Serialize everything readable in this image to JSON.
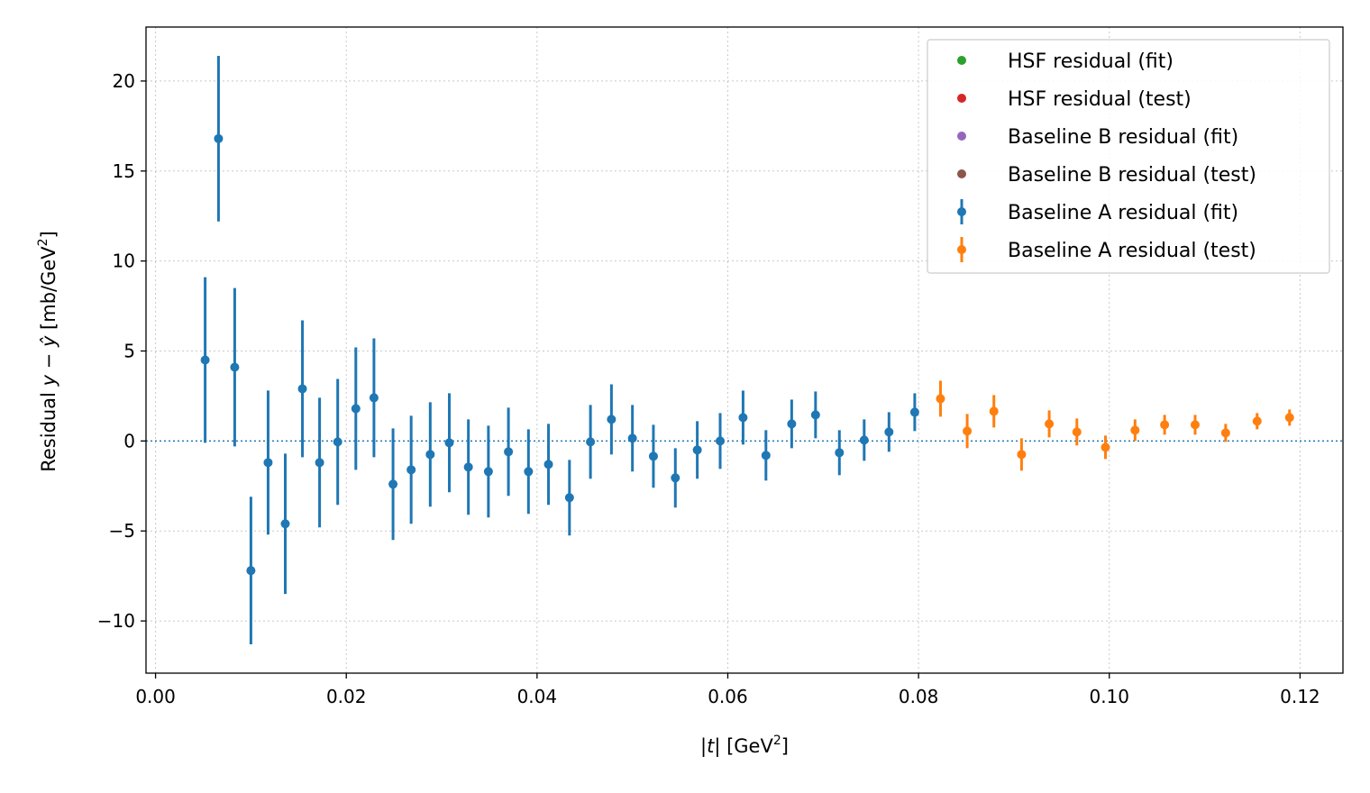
{
  "chart_data": {
    "type": "scatter",
    "title": "",
    "xlabel": {
      "pre": "|",
      "italic": "t",
      "post": "| [GeV",
      "sup": "2",
      "tail": "]"
    },
    "ylabel": {
      "pre": "Residual  ",
      "italic": "y − ŷ",
      "post": "  [mb/GeV",
      "sup": "2",
      "tail": "]"
    },
    "xlim": [
      -0.001,
      0.1245
    ],
    "ylim": [
      -12.9,
      23.0
    ],
    "x_ticks": [
      0.0,
      0.02,
      0.04,
      0.06,
      0.08,
      0.1,
      0.12
    ],
    "x_tick_labels": [
      "0.00",
      "0.02",
      "0.04",
      "0.06",
      "0.08",
      "0.10",
      "0.12"
    ],
    "y_ticks": [
      -10,
      -5,
      0,
      5,
      10,
      15,
      20
    ],
    "y_tick_labels": [
      "−10",
      "−5",
      "0",
      "5",
      "10",
      "15",
      "20"
    ],
    "grid": true,
    "reference_line": {
      "y": 0,
      "style": "dotted",
      "color": "#1f77b4"
    },
    "legend": {
      "placement": "top-right",
      "entries": [
        {
          "label": "HSF residual (fit)",
          "color": "#2ca02c",
          "errorbar": false
        },
        {
          "label": "HSF residual (test)",
          "color": "#d62728",
          "errorbar": false
        },
        {
          "label": "Baseline B residual (fit)",
          "color": "#9467bd",
          "errorbar": false
        },
        {
          "label": "Baseline B residual (test)",
          "color": "#8c564b",
          "errorbar": false
        },
        {
          "label": "Baseline A residual (fit)",
          "color": "#1f77b4",
          "errorbar": true
        },
        {
          "label": "Baseline A residual (test)",
          "color": "#ff7f0e",
          "errorbar": true
        }
      ]
    },
    "series": [
      {
        "name": "Baseline A residual (fit)",
        "color": "#1f77b4",
        "points": [
          {
            "x": 0.0052,
            "y": 4.5,
            "err": 4.6
          },
          {
            "x": 0.0066,
            "y": 16.8,
            "err": 4.6
          },
          {
            "x": 0.0083,
            "y": 4.1,
            "err": 4.4
          },
          {
            "x": 0.01,
            "y": -7.2,
            "err": 4.1
          },
          {
            "x": 0.0118,
            "y": -1.2,
            "err": 4.0
          },
          {
            "x": 0.0136,
            "y": -4.6,
            "err": 3.9
          },
          {
            "x": 0.0154,
            "y": 2.9,
            "err": 3.8
          },
          {
            "x": 0.0172,
            "y": -1.2,
            "err": 3.6
          },
          {
            "x": 0.0191,
            "y": -0.05,
            "err": 3.5
          },
          {
            "x": 0.021,
            "y": 1.8,
            "err": 3.4
          },
          {
            "x": 0.0229,
            "y": 2.4,
            "err": 3.3
          },
          {
            "x": 0.0249,
            "y": -2.4,
            "err": 3.1
          },
          {
            "x": 0.0268,
            "y": -1.6,
            "err": 3.0
          },
          {
            "x": 0.0288,
            "y": -0.75,
            "err": 2.9
          },
          {
            "x": 0.0308,
            "y": -0.1,
            "err": 2.75
          },
          {
            "x": 0.0328,
            "y": -1.45,
            "err": 2.65
          },
          {
            "x": 0.0349,
            "y": -1.7,
            "err": 2.55
          },
          {
            "x": 0.037,
            "y": -0.6,
            "err": 2.45
          },
          {
            "x": 0.0391,
            "y": -1.7,
            "err": 2.35
          },
          {
            "x": 0.0412,
            "y": -1.3,
            "err": 2.25
          },
          {
            "x": 0.0434,
            "y": -3.15,
            "err": 2.1
          },
          {
            "x": 0.0456,
            "y": -0.05,
            "err": 2.05
          },
          {
            "x": 0.0478,
            "y": 1.2,
            "err": 1.95
          },
          {
            "x": 0.05,
            "y": 0.15,
            "err": 1.85
          },
          {
            "x": 0.0522,
            "y": -0.85,
            "err": 1.75
          },
          {
            "x": 0.0545,
            "y": -2.05,
            "err": 1.65
          },
          {
            "x": 0.0568,
            "y": -0.5,
            "err": 1.6
          },
          {
            "x": 0.0592,
            "y": 0.0,
            "err": 1.55
          },
          {
            "x": 0.0616,
            "y": 1.3,
            "err": 1.5
          },
          {
            "x": 0.064,
            "y": -0.8,
            "err": 1.4
          },
          {
            "x": 0.0667,
            "y": 0.95,
            "err": 1.35
          },
          {
            "x": 0.0692,
            "y": 1.45,
            "err": 1.3
          },
          {
            "x": 0.0717,
            "y": -0.65,
            "err": 1.25
          },
          {
            "x": 0.0743,
            "y": 0.05,
            "err": 1.15
          },
          {
            "x": 0.0769,
            "y": 0.5,
            "err": 1.1
          },
          {
            "x": 0.0796,
            "y": 1.6,
            "err": 1.05
          }
        ]
      },
      {
        "name": "Baseline A residual (test)",
        "color": "#ff7f0e",
        "points": [
          {
            "x": 0.0823,
            "y": 2.35,
            "err": 1.0
          },
          {
            "x": 0.0851,
            "y": 0.55,
            "err": 0.95
          },
          {
            "x": 0.0879,
            "y": 1.65,
            "err": 0.9
          },
          {
            "x": 0.0908,
            "y": -0.75,
            "err": 0.9
          },
          {
            "x": 0.0937,
            "y": 0.95,
            "err": 0.75
          },
          {
            "x": 0.0966,
            "y": 0.5,
            "err": 0.75
          },
          {
            "x": 0.0996,
            "y": -0.35,
            "err": 0.65
          },
          {
            "x": 0.1027,
            "y": 0.6,
            "err": 0.6
          },
          {
            "x": 0.1058,
            "y": 0.9,
            "err": 0.55
          },
          {
            "x": 0.109,
            "y": 0.9,
            "err": 0.55
          },
          {
            "x": 0.1122,
            "y": 0.45,
            "err": 0.5
          },
          {
            "x": 0.1155,
            "y": 1.1,
            "err": 0.45
          },
          {
            "x": 0.1189,
            "y": 1.3,
            "err": 0.45
          }
        ]
      }
    ]
  }
}
